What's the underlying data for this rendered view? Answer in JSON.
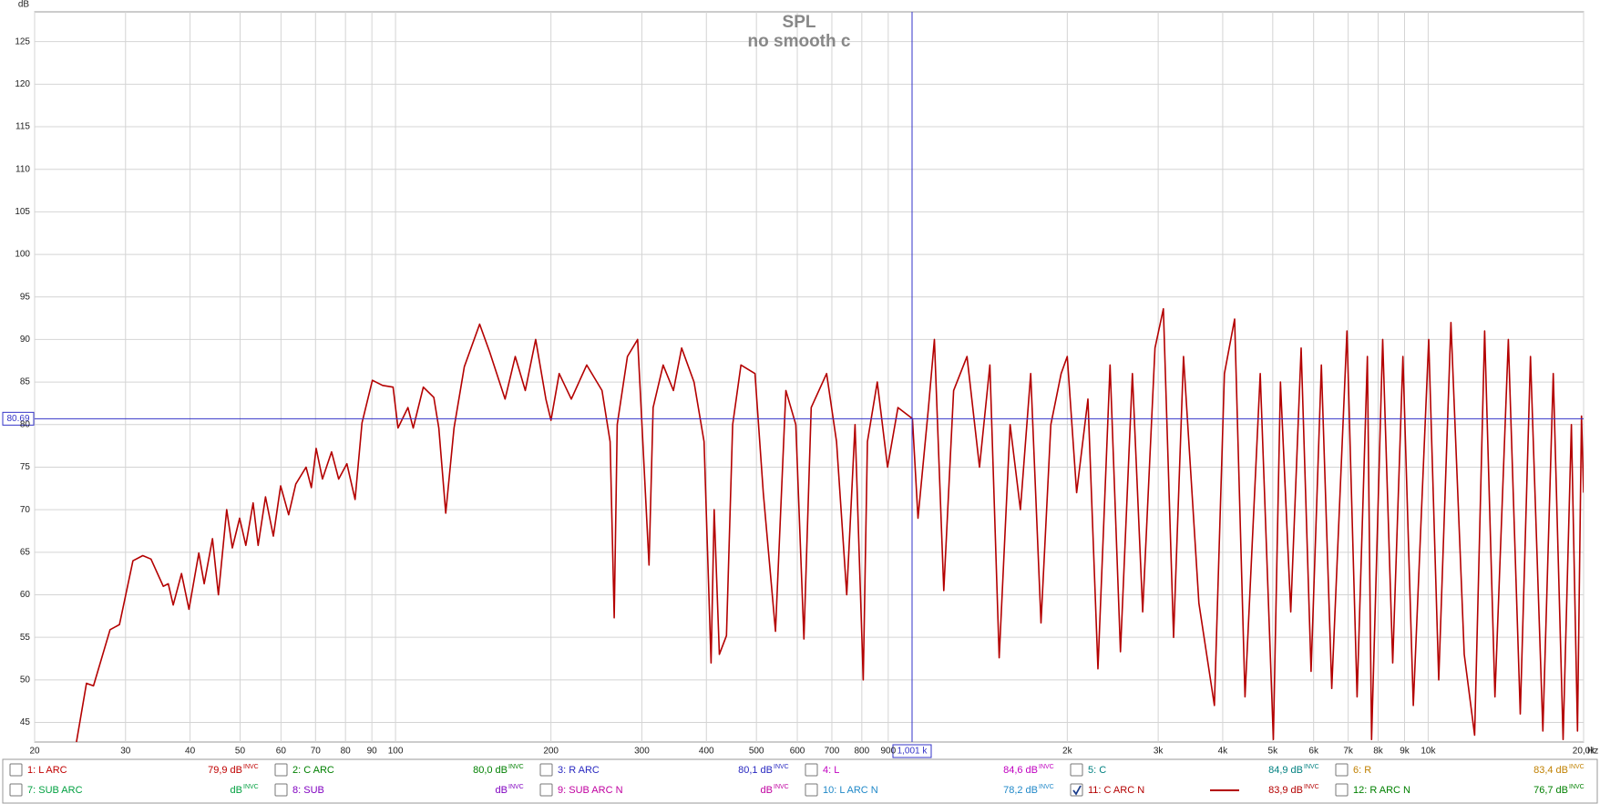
{
  "chart_data": {
    "type": "line",
    "title": "SPL",
    "subtitle": "no smooth c",
    "ylabel": "dB",
    "xlabel": "Hz",
    "log_x": true,
    "grid": true,
    "xlim": [
      20,
      20000
    ],
    "ylim": [
      42.7,
      128.5
    ],
    "xticks": [
      20,
      30,
      40,
      50,
      60,
      70,
      80,
      90,
      100,
      200,
      300,
      400,
      500,
      600,
      700,
      800,
      900,
      {
        "value": 2000,
        "label": "2k"
      },
      {
        "value": 3000,
        "label": "3k"
      },
      {
        "value": 4000,
        "label": "4k"
      },
      {
        "value": 5000,
        "label": "5k"
      },
      {
        "value": 6000,
        "label": "6k"
      },
      {
        "value": 7000,
        "label": "7k"
      },
      {
        "value": 8000,
        "label": "8k"
      },
      {
        "value": 9000,
        "label": "9k"
      },
      {
        "value": 10000,
        "label": "10k"
      },
      {
        "value": 20000,
        "label": "20,0k"
      }
    ],
    "yticks": [
      45,
      50,
      55,
      60,
      65,
      70,
      75,
      80,
      85,
      90,
      95,
      100,
      105,
      110,
      115,
      120,
      125
    ],
    "cursor": {
      "x": {
        "value": 1001,
        "label": "1,001 k"
      },
      "y": 80.69,
      "color": "#3434c8"
    },
    "x": [
      24.1,
      25.2,
      26.0,
      28.0,
      29.2,
      31.0,
      32.4,
      33.6,
      35.5,
      36.3,
      37.1,
      38.5,
      39.8,
      41.6,
      42.6,
      44.2,
      45.4,
      47.1,
      48.3,
      49.9,
      51.3,
      53.0,
      54.2,
      56.0,
      58.0,
      59.9,
      62.1,
      64.1,
      67.1,
      68.7,
      70.2,
      72.2,
      75.2,
      77.6,
      80.5,
      83.5,
      86.1,
      90.2,
      94.4,
      98.9,
      101.1,
      105.7,
      108.2,
      113.2,
      118.6,
      121.3,
      125.1,
      129.8,
      135.9,
      145.5,
      152.2,
      163,
      170.6,
      178.4,
      186.8,
      195.5,
      200,
      207.5,
      219,
      234.6,
      251.1,
      260.4,
      265.2,
      268.8,
      281.3,
      294.4,
      301.3,
      309.7,
      315.4,
      329.8,
      345.3,
      358.2,
      378.5,
      395.8,
      408.5,
      414.1,
      423.8,
      437.5,
      449.8,
      466.7,
      496.9,
      515.6,
      544.5,
      570.2,
      596,
      618.1,
      638.4,
      683.9,
      714.8,
      748.1,
      776.1,
      805.2,
      820.3,
      857,
      897.5,
      939.8,
      1002.5,
      1028,
      1077,
      1106,
      1153,
      1205,
      1279,
      1352,
      1416,
      1476,
      1550,
      1623,
      1699,
      1779,
      1859,
      1946,
      2000,
      2085,
      2193,
      2293,
      2421,
      2535,
      2674,
      2800,
      2957,
      3070,
      3213,
      3359,
      3597,
      3855,
      4031,
      4219,
      4418,
      4729,
      5013,
      5176,
      5419,
      5675,
      5933,
      6212,
      6504,
      6962,
      7282,
      7625,
      7768,
      8163,
      8538,
      8935,
      9357,
      10025,
      10480,
      11067,
      11745,
      12300,
      12864,
      13468,
      14298,
      15077,
      15784,
      16680,
      17468,
      18251,
      18937,
      19460,
      19817,
      20000
    ],
    "series": [
      {
        "color": "#b40000",
        "values": [
          42.7,
          49.6,
          49.3,
          55.9,
          56.5,
          64.0,
          64.6,
          64.2,
          61.0,
          61.3,
          58.8,
          62.5,
          58.3,
          64.9,
          61.3,
          66.6,
          60.0,
          70.0,
          65.5,
          69.0,
          65.8,
          70.8,
          65.8,
          71.5,
          66.9,
          72.8,
          69.4,
          73.0,
          75.0,
          72.6,
          77.2,
          73.6,
          76.8,
          73.6,
          75.4,
          71.2,
          80.2,
          85.2,
          84.6,
          84.4,
          79.6,
          82.0,
          79.6,
          84.4,
          83.2,
          79.6,
          69.6,
          79.6,
          86.8,
          91.8,
          88.5,
          83,
          88,
          84,
          90,
          83,
          80.5,
          86,
          83,
          87,
          84,
          78,
          57.3,
          80,
          88,
          90,
          78,
          63.5,
          82,
          87,
          84,
          89,
          85,
          78,
          52,
          70,
          53,
          55.2,
          80,
          87,
          86,
          72,
          55.7,
          84,
          80,
          54.8,
          82,
          86,
          78,
          60,
          80,
          50,
          78,
          85,
          75,
          82,
          80.7,
          69,
          82,
          90,
          60.5,
          84,
          88,
          75,
          87,
          52.6,
          80,
          70,
          86,
          56.7,
          80,
          86,
          88,
          72,
          83,
          51.3,
          87,
          53.3,
          86,
          58,
          89,
          93.6,
          55,
          88,
          59,
          47,
          86,
          92.4,
          48,
          86,
          43,
          85,
          58,
          89,
          51,
          87,
          49,
          91,
          48,
          88,
          43,
          90,
          52,
          88,
          47,
          90,
          50,
          92,
          53,
          43.5,
          91,
          48,
          90,
          46,
          88,
          44,
          86,
          43,
          80,
          44,
          81,
          72
        ]
      }
    ]
  },
  "traces": [
    {
      "label": "1: L ARC",
      "level": "79,9 dB",
      "flag": "INVC",
      "color": "#c00000",
      "checked": false
    },
    {
      "label": "2: C ARC",
      "level": "80,0 dB",
      "flag": "INVC",
      "color": "#008000",
      "checked": false
    },
    {
      "label": "3: R  ARC",
      "level": "80,1 dB",
      "flag": "INVC",
      "color": "#2828c0",
      "checked": false
    },
    {
      "label": "4: L",
      "level": "84,6 dB",
      "flag": "INVC",
      "color": "#c000c0",
      "checked": false
    },
    {
      "label": "5: C",
      "level": "84,9 dB",
      "flag": "INVC",
      "color": "#008080",
      "checked": false
    },
    {
      "label": "6: R",
      "level": "83,4 dB",
      "flag": "INVC",
      "color": "#c08000",
      "checked": false
    },
    {
      "label": "7: SUB ARC",
      "level": "dB",
      "flag": "INVC",
      "color": "#00a040",
      "checked": false
    },
    {
      "label": "8: SUB",
      "level": "dB",
      "flag": "INVC",
      "color": "#8000c0",
      "checked": false
    },
    {
      "label": "9: SUB ARC N",
      "level": "dB",
      "flag": "INVC",
      "color": "#c000a0",
      "checked": false
    },
    {
      "label": "10: L ARC N",
      "level": "78,2 dB",
      "flag": "INVC",
      "color": "#2088c8",
      "checked": false
    },
    {
      "label": "11: C ARC  N",
      "level": "83,9 dB",
      "flag": "INVC",
      "color": "#b40000",
      "checked": true
    },
    {
      "label": "12: R ARC  N",
      "level": "76,7 dB",
      "flag": "INVC",
      "color": "#008000",
      "checked": false
    }
  ]
}
